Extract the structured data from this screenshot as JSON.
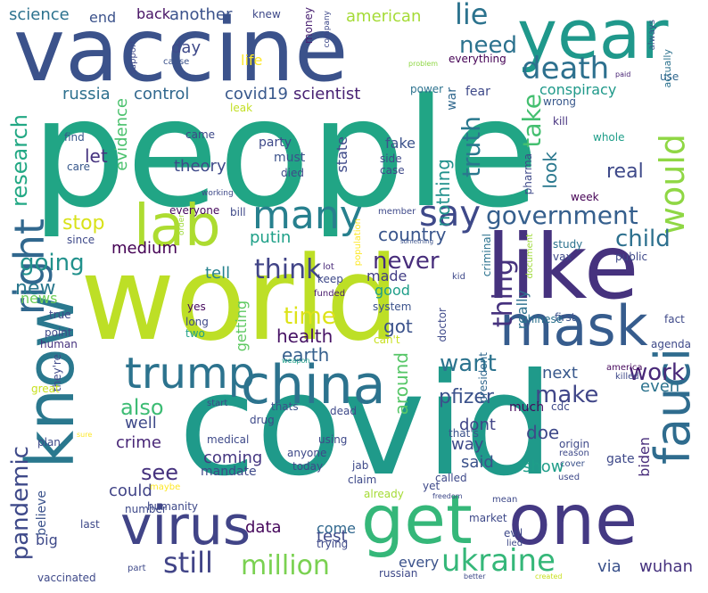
{
  "wordcloud": {
    "words": [
      {
        "text": "people",
        "color": "#21a585"
      },
      {
        "text": "covid",
        "color": "#1f9a8a"
      },
      {
        "text": "world",
        "color": "#bddf26"
      },
      {
        "text": "vaccine",
        "color": "#3b528b"
      },
      {
        "text": "like",
        "color": "#46327e"
      },
      {
        "text": "year",
        "color": "#1f988b"
      },
      {
        "text": "one",
        "color": "#443983"
      },
      {
        "text": "get",
        "color": "#35b779"
      },
      {
        "text": "know",
        "color": "#2a788e"
      },
      {
        "text": "lab",
        "color": "#addc30"
      },
      {
        "text": "china",
        "color": "#2c738e"
      },
      {
        "text": "mask",
        "color": "#365c8d"
      },
      {
        "text": "virus",
        "color": "#414487"
      },
      {
        "text": "fauci",
        "color": "#2f6c8e"
      },
      {
        "text": "trump",
        "color": "#2c738e"
      },
      {
        "text": "right",
        "color": "#31688e"
      },
      {
        "text": "many",
        "color": "#27808e"
      },
      {
        "text": "would",
        "color": "#8fd744"
      },
      {
        "text": "death",
        "color": "#2d708e"
      },
      {
        "text": "say",
        "color": "#3e4989"
      },
      {
        "text": "government",
        "color": "#355f8d"
      },
      {
        "text": "thing",
        "color": "#46327e"
      },
      {
        "text": "ukraine",
        "color": "#35b779"
      },
      {
        "text": "still",
        "color": "#414487"
      },
      {
        "text": "million",
        "color": "#7ad151"
      },
      {
        "text": "pandemic",
        "color": "#3e4989"
      },
      {
        "text": "research",
        "color": "#22a884"
      },
      {
        "text": "truth",
        "color": "#2a788e"
      },
      {
        "text": "take",
        "color": "#44bf70"
      },
      {
        "text": "need",
        "color": "#2c728e"
      },
      {
        "text": "lie",
        "color": "#2c738e"
      },
      {
        "text": "going",
        "color": "#21918c"
      },
      {
        "text": "think",
        "color": "#414487"
      },
      {
        "text": "never",
        "color": "#472d7b"
      },
      {
        "text": "child",
        "color": "#2d708e"
      },
      {
        "text": "time",
        "color": "#dde318"
      },
      {
        "text": "stop",
        "color": "#d8e219"
      },
      {
        "text": "new",
        "color": "#2a788e"
      },
      {
        "text": "make",
        "color": "#404688"
      },
      {
        "text": "work",
        "color": "#482878"
      },
      {
        "text": "want",
        "color": "#2c738e"
      },
      {
        "text": "also",
        "color": "#3dbc74"
      },
      {
        "text": "see",
        "color": "#46327e"
      },
      {
        "text": "around",
        "color": "#56c667"
      },
      {
        "text": "pfizer",
        "color": "#3b528b"
      },
      {
        "text": "health",
        "color": "#471365"
      },
      {
        "text": "earth",
        "color": "#355f8d"
      },
      {
        "text": "country",
        "color": "#39558c"
      },
      {
        "text": "real",
        "color": "#3e4989"
      },
      {
        "text": "look",
        "color": "#2a788e"
      },
      {
        "text": "nothing",
        "color": "#21918c"
      },
      {
        "text": "conspiracy",
        "color": "#1f998a"
      },
      {
        "text": "scientist",
        "color": "#482173"
      },
      {
        "text": "covid19",
        "color": "#38588c"
      },
      {
        "text": "control",
        "color": "#31688e"
      },
      {
        "text": "russia",
        "color": "#2d708e"
      },
      {
        "text": "evidence",
        "color": "#4ac16d"
      },
      {
        "text": "theory",
        "color": "#3e4989"
      },
      {
        "text": "let",
        "color": "#46337f"
      },
      {
        "text": "putin",
        "color": "#1fa088"
      },
      {
        "text": "medium",
        "color": "#440154"
      },
      {
        "text": "tell",
        "color": "#26828e"
      },
      {
        "text": "made",
        "color": "#433e85"
      },
      {
        "text": "getting",
        "color": "#5ec962"
      },
      {
        "text": "got",
        "color": "#3b528b"
      },
      {
        "text": "good",
        "color": "#1f9e89"
      },
      {
        "text": "news",
        "color": "#6ece58"
      },
      {
        "text": "really",
        "color": "#2d708e"
      },
      {
        "text": "even",
        "color": "#2c738e"
      },
      {
        "text": "next",
        "color": "#38588c"
      },
      {
        "text": "doe",
        "color": "#3e4989"
      },
      {
        "text": "dont",
        "color": "#414487"
      },
      {
        "text": "way",
        "color": "#3e4989"
      },
      {
        "text": "said",
        "color": "#3b528b"
      },
      {
        "text": "show",
        "color": "#1f9e89"
      },
      {
        "text": "biden",
        "color": "#472c7a"
      },
      {
        "text": "well",
        "color": "#3e4989"
      },
      {
        "text": "crime",
        "color": "#482677"
      },
      {
        "text": "coming",
        "color": "#453781"
      },
      {
        "text": "could",
        "color": "#414487"
      },
      {
        "text": "data",
        "color": "#46085c"
      },
      {
        "text": "test",
        "color": "#3e4989"
      },
      {
        "text": "come",
        "color": "#31688e"
      },
      {
        "text": "every",
        "color": "#3b528b"
      },
      {
        "text": "via",
        "color": "#3b528b"
      },
      {
        "text": "wuhan",
        "color": "#46327e"
      },
      {
        "text": "big",
        "color": "#3e4989"
      },
      {
        "text": "believe",
        "color": "#3b528b"
      },
      {
        "text": "science",
        "color": "#2c728e"
      },
      {
        "text": "end",
        "color": "#3b528b"
      },
      {
        "text": "back",
        "color": "#471365"
      },
      {
        "text": "another",
        "color": "#3b528b"
      },
      {
        "text": "knew",
        "color": "#3e4989"
      },
      {
        "text": "money",
        "color": "#481f70"
      },
      {
        "text": "company",
        "color": "#3e4989"
      },
      {
        "text": "american",
        "color": "#a5db36"
      },
      {
        "text": "always",
        "color": "#3b528b"
      },
      {
        "text": "day",
        "color": "#3e4989"
      },
      {
        "text": "life",
        "color": "#fde725"
      },
      {
        "text": "support",
        "color": "#3e4989"
      },
      {
        "text": "cause",
        "color": "#3b528b"
      },
      {
        "text": "everything",
        "color": "#440154"
      },
      {
        "text": "actually",
        "color": "#2c728e"
      },
      {
        "text": "problem",
        "color": "#8fd744"
      },
      {
        "text": "paid",
        "color": "#482475"
      },
      {
        "text": "use",
        "color": "#31688e"
      },
      {
        "text": "power",
        "color": "#2c728e"
      },
      {
        "text": "fear",
        "color": "#3e4989"
      },
      {
        "text": "war",
        "color": "#31688e"
      },
      {
        "text": "wrong",
        "color": "#38588c"
      },
      {
        "text": "leak",
        "color": "#c2df23"
      },
      {
        "text": "kill",
        "color": "#46327e"
      },
      {
        "text": "came",
        "color": "#3e4989"
      },
      {
        "text": "find",
        "color": "#38588c"
      },
      {
        "text": "party",
        "color": "#3e4989"
      },
      {
        "text": "must",
        "color": "#3b528b"
      },
      {
        "text": "died",
        "color": "#3e4989"
      },
      {
        "text": "whole",
        "color": "#1f9e89"
      },
      {
        "text": "fake",
        "color": "#3b528b"
      },
      {
        "text": "state",
        "color": "#3e4989"
      },
      {
        "text": "side",
        "color": "#3e4989"
      },
      {
        "text": "case",
        "color": "#3e4989"
      },
      {
        "text": "care",
        "color": "#38588c"
      },
      {
        "text": "pharma",
        "color": "#3e4989"
      },
      {
        "text": "week",
        "color": "#440154"
      },
      {
        "text": "working",
        "color": "#3e4989"
      },
      {
        "text": "everyone",
        "color": "#46085c"
      },
      {
        "text": "bill",
        "color": "#3e4989"
      },
      {
        "text": "member",
        "color": "#3e4989"
      },
      {
        "text": "order",
        "color": "#9fda3a"
      },
      {
        "text": "population",
        "color": "#fde725"
      },
      {
        "text": "something",
        "color": "#3b528b"
      },
      {
        "text": "study",
        "color": "#2c728e"
      },
      {
        "text": "since",
        "color": "#3e4989"
      },
      {
        "text": "lot",
        "color": "#482878"
      },
      {
        "text": "criminal",
        "color": "#2c728e"
      },
      {
        "text": "vax",
        "color": "#3e4989"
      },
      {
        "text": "public",
        "color": "#3e4989"
      },
      {
        "text": "keep",
        "color": "#3e4989"
      },
      {
        "text": "funded",
        "color": "#481b6d"
      },
      {
        "text": "kid",
        "color": "#3e4989"
      },
      {
        "text": "document",
        "color": "#9fda3a"
      },
      {
        "text": "system",
        "color": "#3b528b"
      },
      {
        "text": "yes",
        "color": "#46085c"
      },
      {
        "text": "long",
        "color": "#3e4989"
      },
      {
        "text": "true",
        "color": "#3e4989"
      },
      {
        "text": "first",
        "color": "#3b528b"
      },
      {
        "text": "chinese",
        "color": "#2c728e"
      },
      {
        "text": "fact",
        "color": "#3e4989"
      },
      {
        "text": "two",
        "color": "#1fa088"
      },
      {
        "text": "point",
        "color": "#3e4989"
      },
      {
        "text": "can't",
        "color": "#c8e020"
      },
      {
        "text": "doctor",
        "color": "#3e4989"
      },
      {
        "text": "president",
        "color": "#31688e"
      },
      {
        "text": "agenda",
        "color": "#3e4989"
      },
      {
        "text": "human",
        "color": "#46327e"
      },
      {
        "text": "they're",
        "color": "#3e4989"
      },
      {
        "text": "weapon",
        "color": "#1fa088"
      },
      {
        "text": "america",
        "color": "#46085c"
      },
      {
        "text": "killed",
        "color": "#3e4989"
      },
      {
        "text": "great",
        "color": "#c8e020"
      },
      {
        "text": "start",
        "color": "#3e4989"
      },
      {
        "text": "thats",
        "color": "#3b528b"
      },
      {
        "text": "dead",
        "color": "#3e4989"
      },
      {
        "text": "much",
        "color": "#46085c"
      },
      {
        "text": "cdc",
        "color": "#3e4989"
      },
      {
        "text": "drug",
        "color": "#3e4989"
      },
      {
        "text": "that's",
        "color": "#3b528b"
      },
      {
        "text": "plan",
        "color": "#3e4989"
      },
      {
        "text": "origin",
        "color": "#3e4989"
      },
      {
        "text": "reason",
        "color": "#3e4989"
      },
      {
        "text": "cover",
        "color": "#3b528b"
      },
      {
        "text": "gate",
        "color": "#3e4989"
      },
      {
        "text": "sure",
        "color": "#fde725"
      },
      {
        "text": "medical",
        "color": "#3e4989"
      },
      {
        "text": "using",
        "color": "#3e4989"
      },
      {
        "text": "used",
        "color": "#3e4989"
      },
      {
        "text": "anyone",
        "color": "#3e4989"
      },
      {
        "text": "today",
        "color": "#3e4989"
      },
      {
        "text": "jab",
        "color": "#3e4989"
      },
      {
        "text": "claim",
        "color": "#3e4989"
      },
      {
        "text": "called",
        "color": "#3e4989"
      },
      {
        "text": "mandate",
        "color": "#3e4989"
      },
      {
        "text": "maybe",
        "color": "#fde725"
      },
      {
        "text": "humanity",
        "color": "#3e4989"
      },
      {
        "text": "already",
        "color": "#a5db36"
      },
      {
        "text": "freedom",
        "color": "#3e4989"
      },
      {
        "text": "mean",
        "color": "#3e4989"
      },
      {
        "text": "number",
        "color": "#3e4989"
      },
      {
        "text": "last",
        "color": "#3e4989"
      },
      {
        "text": "market",
        "color": "#3e4989"
      },
      {
        "text": "evil",
        "color": "#3e4989"
      },
      {
        "text": "trying",
        "color": "#3e4989"
      },
      {
        "text": "lied",
        "color": "#3e4989"
      },
      {
        "text": "part",
        "color": "#3e4989"
      },
      {
        "text": "russian",
        "color": "#3e4989"
      },
      {
        "text": "vaccinated",
        "color": "#3e4989"
      },
      {
        "text": "better",
        "color": "#3e4989"
      },
      {
        "text": "created",
        "color": "#c8e020"
      },
      {
        "text": "yet",
        "color": "#3e4989"
      }
    ]
  }
}
